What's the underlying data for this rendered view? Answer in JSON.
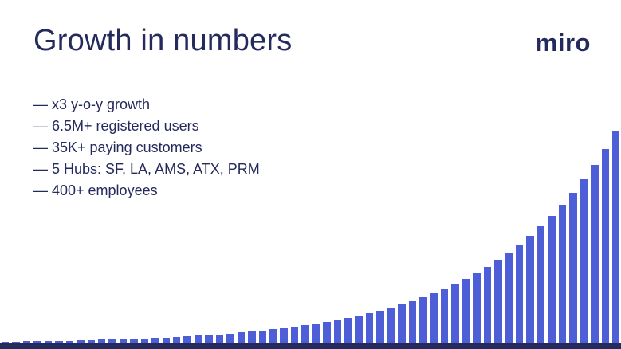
{
  "slide": {
    "title": "Growth in numbers",
    "logo": "miro"
  },
  "bullets": [
    "— x3 y-o-y growth",
    "— 6.5M+ registered users",
    "— 35K+ paying customers",
    "— 5 Hubs: SF, LA, AMS, ATX, PRM",
    "— 400+ employees"
  ],
  "colors": {
    "text": "#252a5c",
    "bar": "#4d5ed6",
    "baseline": "#252a5c",
    "background": "#ffffff"
  },
  "chart_data": {
    "type": "bar",
    "title": "",
    "xlabel": "",
    "ylabel": "",
    "legend": "none",
    "grid": false,
    "x_axis_labels_visible": false,
    "y_axis_labels_visible": false,
    "bar_count": 58,
    "ylim": [
      0,
      100
    ],
    "values_percent_of_max": [
      0.8,
      0.9,
      1.0,
      1.0,
      1.1,
      1.2,
      1.3,
      1.5,
      1.6,
      1.7,
      1.9,
      2.0,
      2.2,
      2.4,
      2.6,
      2.8,
      3.1,
      3.4,
      3.7,
      4.0,
      4.3,
      4.7,
      5.1,
      5.6,
      6.1,
      6.6,
      7.2,
      7.9,
      8.6,
      9.3,
      10.1,
      11.0,
      12.0,
      13.1,
      14.2,
      15.5,
      16.8,
      18.3,
      19.9,
      21.7,
      23.6,
      25.7,
      28.0,
      30.4,
      33.1,
      36.1,
      39.3,
      42.7,
      46.5,
      50.6,
      55.1,
      60.0,
      65.3,
      71.0,
      77.3,
      84.1,
      91.6,
      100.0
    ]
  }
}
